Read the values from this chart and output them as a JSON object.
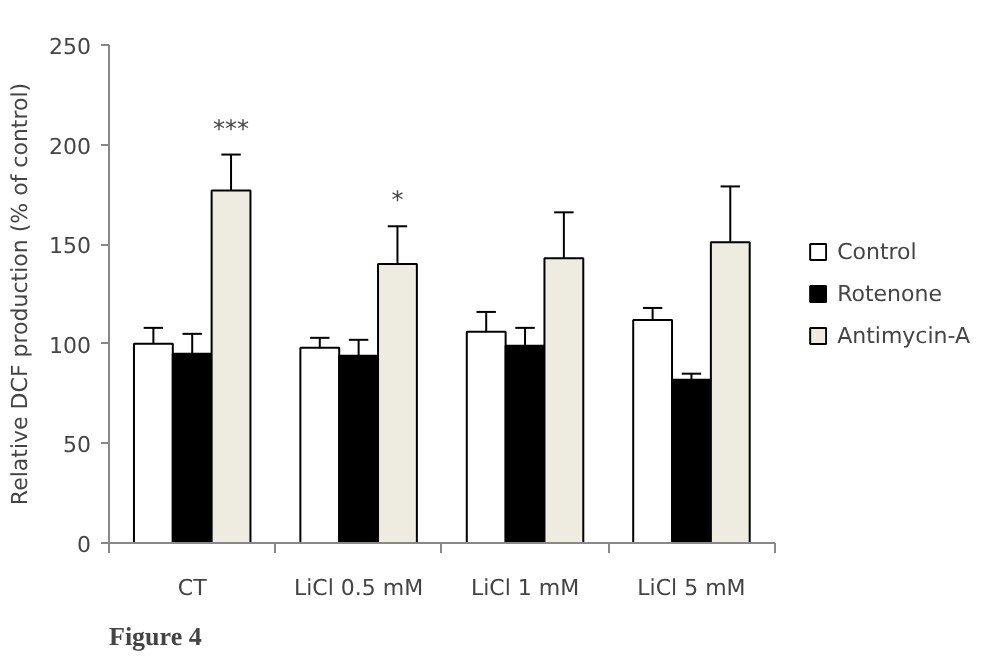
{
  "chart_data": {
    "type": "bar",
    "ylabel": "Relative DCF production (% of control)",
    "categories": [
      "CT",
      "LiCl 0.5 mM",
      "LiCl 1 mM",
      "LiCl 5 mM"
    ],
    "series": [
      {
        "name": "Control",
        "color": "#ffffff",
        "values": [
          100,
          98,
          106,
          112
        ],
        "errors": [
          [
            100,
            108
          ],
          [
            98,
            103
          ],
          [
            106,
            116
          ],
          [
            112,
            118
          ]
        ]
      },
      {
        "name": "Rotenone",
        "color": "#000000",
        "values": [
          95,
          94,
          99,
          82
        ],
        "errors": [
          [
            95,
            105
          ],
          [
            94,
            102
          ],
          [
            99,
            108
          ],
          [
            82,
            85
          ]
        ]
      },
      {
        "name": "Antimycin-A",
        "color": "#eeece1",
        "values": [
          177,
          140,
          143,
          151
        ],
        "errors": [
          [
            177,
            195
          ],
          [
            140,
            159
          ],
          [
            143,
            166
          ],
          [
            151,
            179
          ]
        ],
        "value_labels": [
          "***",
          "*",
          null,
          null
        ]
      }
    ],
    "ylim": [
      0,
      250
    ],
    "yticks": [
      0,
      50,
      100,
      150,
      200,
      250
    ],
    "grid": false,
    "legend": "right",
    "annotations": [
      "Figure 4"
    ]
  }
}
